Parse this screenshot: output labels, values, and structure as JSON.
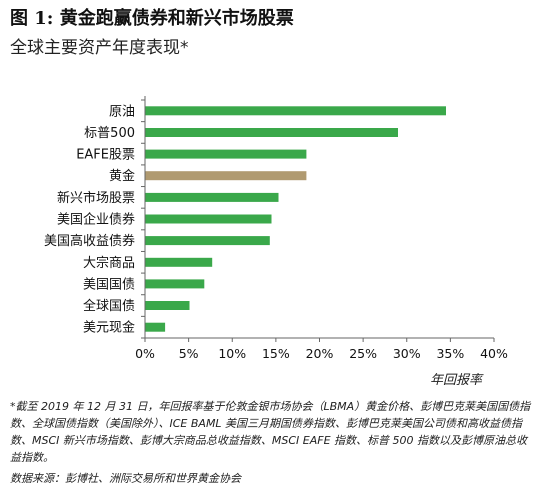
{
  "header": {
    "title": "图 1: 黄金跑赢债券和新兴市场股票",
    "subtitle": "全球主要资产年度表现*"
  },
  "chart_data": {
    "type": "bar",
    "orientation": "horizontal",
    "categories": [
      "原油",
      "标普500",
      "EAFE股票",
      "黄金",
      "新兴市场股票",
      "美国企业债券",
      "美国高收益债券",
      "大宗商品",
      "美国国债",
      "全球国债",
      "美元现金"
    ],
    "values": [
      34.5,
      29.0,
      18.5,
      18.5,
      15.3,
      14.5,
      14.3,
      7.7,
      6.8,
      5.1,
      2.3
    ],
    "xlabel": "年回报率",
    "ylabel": "",
    "xlim": [
      0,
      40
    ],
    "xticks": [
      0,
      5,
      10,
      15,
      20,
      25,
      30,
      35,
      40
    ],
    "xtick_labels": [
      "0%",
      "5%",
      "10%",
      "15%",
      "20%",
      "25%",
      "30%",
      "35%",
      "40%"
    ],
    "grid": false,
    "legend": "none",
    "colors": {
      "default": "#3aa84a",
      "highlight": "#b09a70",
      "highlight_category": "黄金",
      "axis": "#666666"
    }
  },
  "footer": {
    "footnote": "*截至 2019 年 12 月 31 日，年回报率基于伦敦金银市场协会（LBMA）黄金价格、彭博巴克莱美国国债指数、全球国债指数（美国除外）、ICE BAML 美国三月期国债券指数、彭博巴克莱美国公司债和高收益债指数、MSCI 新兴市场指数、彭博大宗商品总收益指数、MSCI EAFE 指数、标普 500 指数以及彭博原油总收益指数。",
    "source": "数据来源：彭博社、洲际交易所和世界黄金协会"
  }
}
